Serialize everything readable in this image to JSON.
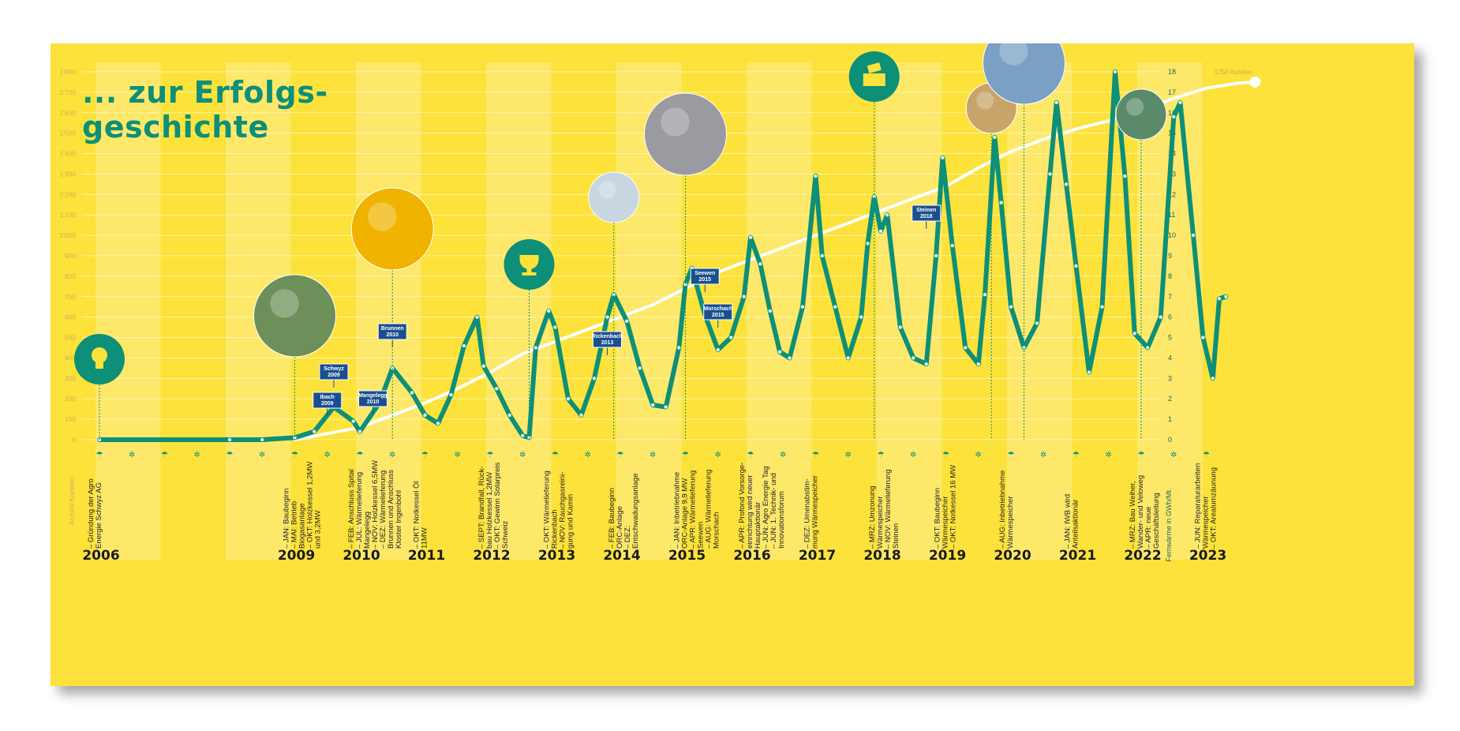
{
  "title": "... zur Erfolgs-\ngeschichte",
  "colors": {
    "background": "#fce23a",
    "band": "#fde97a",
    "series_heat": "#0d8f78",
    "series_customers": "#ffffff",
    "tag": "#1a4f8f"
  },
  "chart_data": {
    "type": "line",
    "x": [
      "2006",
      "2007",
      "2008",
      "2009",
      "2010",
      "2011",
      "2012",
      "2013",
      "2014",
      "2015",
      "2016",
      "2017",
      "2018",
      "2019",
      "2020",
      "2021",
      "2022",
      "2023"
    ],
    "ylabel_left": "Anzahl Kunden",
    "ylabel_right": "Fernwärme in GWh/Mt.",
    "ylim_left": [
      0,
      1800
    ],
    "ylim_right": [
      0,
      18
    ],
    "left_ticks": [
      "0",
      "100",
      "200",
      "300",
      "400",
      "500",
      "600",
      "700",
      "800",
      "900",
      "1'000",
      "1'100",
      "1'200",
      "1'300",
      "1'400",
      "1'500",
      "1'600",
      "1'700",
      "1'800"
    ],
    "right_ticks": [
      "0",
      "1",
      "2",
      "3",
      "4",
      "5",
      "6",
      "7",
      "8",
      "9",
      "10",
      "11",
      "12",
      "13",
      "14",
      "15",
      "16",
      "17",
      "18"
    ],
    "customers_end_label": "1750 Kunden",
    "series": [
      {
        "role": "customers",
        "points": [
          [
            2009.0,
            0
          ],
          [
            2009.5,
            30
          ],
          [
            2010.0,
            60
          ],
          [
            2010.5,
            120
          ],
          [
            2011.0,
            180
          ],
          [
            2011.5,
            250
          ],
          [
            2012.0,
            330
          ],
          [
            2012.5,
            420
          ],
          [
            2013.0,
            480
          ],
          [
            2013.5,
            540
          ],
          [
            2014.0,
            600
          ],
          [
            2014.5,
            660
          ],
          [
            2015.0,
            740
          ],
          [
            2015.5,
            820
          ],
          [
            2016.0,
            880
          ],
          [
            2016.5,
            940
          ],
          [
            2017.0,
            1000
          ],
          [
            2017.5,
            1060
          ],
          [
            2018.0,
            1120
          ],
          [
            2018.5,
            1180
          ],
          [
            2019.0,
            1240
          ],
          [
            2019.5,
            1330
          ],
          [
            2020.0,
            1410
          ],
          [
            2020.5,
            1470
          ],
          [
            2021.0,
            1520
          ],
          [
            2021.5,
            1560
          ],
          [
            2022.0,
            1610
          ],
          [
            2022.5,
            1670
          ],
          [
            2023.0,
            1720
          ],
          [
            2023.5,
            1745
          ],
          [
            2023.75,
            1750
          ]
        ]
      },
      {
        "role": "heat",
        "points": [
          [
            2006.0,
            0
          ],
          [
            2008.0,
            0
          ],
          [
            2008.5,
            0
          ],
          [
            2009.0,
            0.1
          ],
          [
            2009.3,
            0.4
          ],
          [
            2009.6,
            1.6
          ],
          [
            2009.9,
            0.9
          ],
          [
            2010.0,
            0.4
          ],
          [
            2010.3,
            1.8
          ],
          [
            2010.5,
            3.5
          ],
          [
            2010.8,
            2.3
          ],
          [
            2011.0,
            1.2
          ],
          [
            2011.2,
            0.8
          ],
          [
            2011.4,
            2.2
          ],
          [
            2011.6,
            4.6
          ],
          [
            2011.8,
            6.0
          ],
          [
            2011.9,
            3.6
          ],
          [
            2012.1,
            2.5
          ],
          [
            2012.3,
            1.2
          ],
          [
            2012.5,
            0.2
          ],
          [
            2012.6,
            0.1
          ],
          [
            2012.7,
            4.5
          ],
          [
            2012.9,
            6.3
          ],
          [
            2013.0,
            5.5
          ],
          [
            2013.2,
            2.0
          ],
          [
            2013.4,
            1.2
          ],
          [
            2013.6,
            3.0
          ],
          [
            2013.8,
            6.0
          ],
          [
            2013.9,
            7.1
          ],
          [
            2014.1,
            5.8
          ],
          [
            2014.3,
            3.5
          ],
          [
            2014.5,
            1.7
          ],
          [
            2014.7,
            1.6
          ],
          [
            2014.9,
            4.5
          ],
          [
            2015.0,
            7.6
          ],
          [
            2015.1,
            8.4
          ],
          [
            2015.3,
            6.1
          ],
          [
            2015.5,
            4.4
          ],
          [
            2015.7,
            5.0
          ],
          [
            2015.9,
            7.0
          ],
          [
            2016.0,
            9.9
          ],
          [
            2016.15,
            8.6
          ],
          [
            2016.3,
            6.3
          ],
          [
            2016.45,
            4.3
          ],
          [
            2016.6,
            4.0
          ],
          [
            2016.8,
            6.5
          ],
          [
            2017.0,
            12.9
          ],
          [
            2017.1,
            9.0
          ],
          [
            2017.3,
            6.5
          ],
          [
            2017.5,
            4.0
          ],
          [
            2017.7,
            6.0
          ],
          [
            2017.8,
            9.6
          ],
          [
            2017.9,
            11.9
          ],
          [
            2018.0,
            10.2
          ],
          [
            2018.1,
            11.0
          ],
          [
            2018.3,
            5.5
          ],
          [
            2018.5,
            4.0
          ],
          [
            2018.7,
            3.7
          ],
          [
            2018.85,
            9.0
          ],
          [
            2018.95,
            13.8
          ],
          [
            2019.1,
            9.5
          ],
          [
            2019.3,
            4.5
          ],
          [
            2019.5,
            3.7
          ],
          [
            2019.6,
            7.1
          ],
          [
            2019.75,
            14.8
          ],
          [
            2019.85,
            11.6
          ],
          [
            2020.0,
            6.5
          ],
          [
            2020.2,
            4.5
          ],
          [
            2020.4,
            5.7
          ],
          [
            2020.6,
            13.0
          ],
          [
            2020.7,
            16.5
          ],
          [
            2020.85,
            12.5
          ],
          [
            2021.0,
            8.5
          ],
          [
            2021.2,
            3.3
          ],
          [
            2021.4,
            6.5
          ],
          [
            2021.6,
            18.0
          ],
          [
            2021.75,
            12.9
          ],
          [
            2021.9,
            5.2
          ],
          [
            2022.1,
            4.5
          ],
          [
            2022.3,
            6.0
          ],
          [
            2022.5,
            15.8
          ],
          [
            2022.6,
            16.5
          ],
          [
            2022.8,
            10.0
          ],
          [
            2022.95,
            5.0
          ],
          [
            2023.1,
            3.0
          ],
          [
            2023.2,
            6.9
          ],
          [
            2023.3,
            7.0
          ]
        ]
      }
    ]
  },
  "tags": [
    {
      "label": "Ibach\n2009",
      "year": 2009.5
    },
    {
      "label": "Schwyz\n2009",
      "year": 2009.6
    },
    {
      "label": "Mangelegg\n2010",
      "year": 2010.2
    },
    {
      "label": "Brunnen\n2010",
      "year": 2010.5
    },
    {
      "label": "Rickenbach\n2013",
      "year": 2013.8
    },
    {
      "label": "Seewen\n2015",
      "year": 2015.3
    },
    {
      "label": "Morschach\n2015",
      "year": 2015.5
    },
    {
      "label": "Steinen\n2018",
      "year": 2018.7
    }
  ],
  "years": [
    {
      "label": "2006",
      "pos": 2006.0
    },
    {
      "label": "2009",
      "pos": 2009.0
    },
    {
      "label": "2010",
      "pos": 2010.0
    },
    {
      "label": "2011",
      "pos": 2011.0
    },
    {
      "label": "2012",
      "pos": 2012.0
    },
    {
      "label": "2013",
      "pos": 2013.0
    },
    {
      "label": "2014",
      "pos": 2014.0
    },
    {
      "label": "2015",
      "pos": 2015.0
    },
    {
      "label": "2016",
      "pos": 2016.0
    },
    {
      "label": "2017",
      "pos": 2017.0
    },
    {
      "label": "2018",
      "pos": 2018.0
    },
    {
      "label": "2019",
      "pos": 2019.0
    },
    {
      "label": "2020",
      "pos": 2020.0
    },
    {
      "label": "2021",
      "pos": 2021.0
    },
    {
      "label": "2022",
      "pos": 2022.0
    },
    {
      "label": "2023",
      "pos": 2023.0
    }
  ],
  "events": [
    {
      "year": 2006.0,
      "lines": [
        "– Gründung der Agro",
        "  Energie Schwyz AG"
      ]
    },
    {
      "year": 2009.0,
      "lines": [
        "– JAN: Baubeginn",
        "– MAI: Betrieb",
        "  Biogasanlage",
        "– OKT: Holzkessel 1,2MW",
        "  und 3,2MW"
      ]
    },
    {
      "year": 2010.0,
      "lines": [
        "– FEB: Anschluss Spital",
        "– JUL: Wärmelieferung",
        "  Mangelegg",
        "– NOV: Holzkessel 6,5MW",
        "– DEZ: Wärmelieferung",
        "  Brunnen und Anschluss",
        "  Kloster Ingenbohl"
      ]
    },
    {
      "year": 2011.0,
      "lines": [
        "– OKT: Notkessel Öl",
        "  11MW"
      ]
    },
    {
      "year": 2012.0,
      "lines": [
        "– SEPT: Brandfall, Rück-",
        "  bau Holzkessel 1,2MW",
        "– OKT: Gewinn Solarpreis",
        "  Schweiz"
      ]
    },
    {
      "year": 2013.0,
      "lines": [
        "– OKT: Wärmelieferung",
        "  Rickenbach",
        "– NOV: Rauchgasreini-",
        "  gung und Kamin"
      ]
    },
    {
      "year": 2014.0,
      "lines": [
        "– FEB: Baubeginn",
        "  ORC-Anlage",
        "– DEZ:",
        "  Entschwadungsanlage"
      ]
    },
    {
      "year": 2015.0,
      "lines": [
        "– JAN: Inbetriebnahme",
        "  ORC-Anlage 9,9 MW",
        "– APR: Wärmelieferung",
        "  Seewen",
        "– AUG: Wärmelieferung",
        "  Morschach"
      ]
    },
    {
      "year": 2016.0,
      "lines": [
        "– APR: Profond Vorsorge-",
        "  einrichtung wird neuer",
        "  Hauptaktionär",
        "– JUN: Agro Energie Tag",
        "– JUN: 1. Technik- und",
        "  Innovationsforum"
      ]
    },
    {
      "year": 2017.0,
      "lines": [
        "– DEZ: Umenabstim-",
        "  mung Wärmespeicher"
      ]
    },
    {
      "year": 2018.0,
      "lines": [
        "– MRZ: Umzonung",
        "  Wärmespeicher",
        "– NOV: Wärmelieferung",
        "  Steinen"
      ]
    },
    {
      "year": 2019.0,
      "lines": [
        "– OKT: Baubeginn",
        "  Wärmespeicher",
        "– OKT: Notkessel 16 MW"
      ]
    },
    {
      "year": 2020.0,
      "lines": [
        "– AUG: Inbetriebnahme",
        "  Wärmespeicher"
      ]
    },
    {
      "year": 2021.0,
      "lines": [
        "– JAN: IWB wird",
        "  Anteilsaktionär"
      ]
    },
    {
      "year": 2022.0,
      "lines": [
        "– MRZ: Bau Weiher,",
        "  Wander- und Veloweg",
        "– APR: neue",
        "  Geschäftsleitung"
      ]
    },
    {
      "year": 2023.0,
      "lines": [
        "– JUN: Reparaturarbeiten",
        "  Wärmespeicher",
        "– OKT: Arealumzäunung"
      ]
    }
  ],
  "photos": [
    {
      "name": "lightbulb-icon",
      "year": 2006.0,
      "icon": "bulb"
    },
    {
      "name": "biogas-plant-photo",
      "year": 2009.0,
      "icon": "plant"
    },
    {
      "name": "boiler-photo",
      "year": 2010.5,
      "icon": "boiler"
    },
    {
      "name": "trophy-icon",
      "year": 2012.6,
      "icon": "trophy"
    },
    {
      "name": "chimney-photo",
      "year": 2013.9,
      "icon": "chimney"
    },
    {
      "name": "orc-pipes-photo",
      "year": 2015.0,
      "icon": "pipes"
    },
    {
      "name": "ballot-box-icon",
      "year": 2017.9,
      "icon": "ballot"
    },
    {
      "name": "wheel-loader-photo",
      "year": 2019.7,
      "icon": "loader"
    },
    {
      "name": "heat-storage-photo",
      "year": 2020.2,
      "icon": "storage"
    },
    {
      "name": "pond-photo",
      "year": 2022.0,
      "icon": "pond"
    }
  ]
}
